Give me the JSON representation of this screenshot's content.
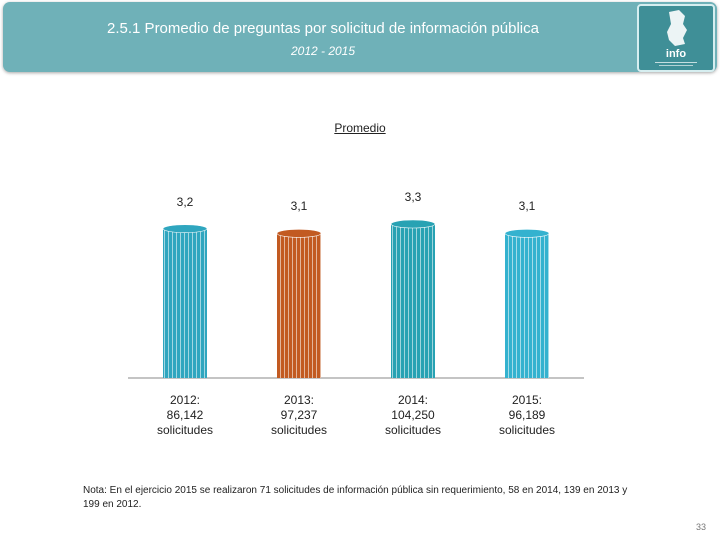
{
  "header": {
    "title": "2.5.1 Promedio de preguntas por solicitud de información pública",
    "subtitle": "2012 - 2015",
    "logo_text": "info",
    "brand_color": "#6fb1b8"
  },
  "chart_data": {
    "type": "bar",
    "title": "Promedio",
    "categories": [
      "2012:\n86,142\nsolicitudes",
      "2013:\n97,237\nsolicitudes",
      "2014:\n104,250\nsolicitudes",
      "2015:\n96,189\nsolicitudes"
    ],
    "category_lines": [
      [
        "2012:",
        "86,142",
        "solicitudes"
      ],
      [
        "2013:",
        "97,237",
        "solicitudes"
      ],
      [
        "2014:",
        "104,250",
        "solicitudes"
      ],
      [
        "2015:",
        "96,189",
        "solicitudes"
      ]
    ],
    "values": [
      3.2,
      3.1,
      3.3,
      3.1
    ],
    "value_labels": [
      "3,2",
      "3,1",
      "3,3",
      "3,1"
    ],
    "colors": [
      "#2fa6bf",
      "#c25a21",
      "#28a2b3",
      "#34b2cf"
    ],
    "ylim": [
      0,
      3.3
    ],
    "xlabel": "",
    "ylabel": "",
    "grid": false
  },
  "note": "Nota: En el ejercicio 2015 se realizaron 71 solicitudes de información pública sin requerimiento, 58 en 2014, 139 en 2013 y 199 en 2012.",
  "page_number": "33"
}
